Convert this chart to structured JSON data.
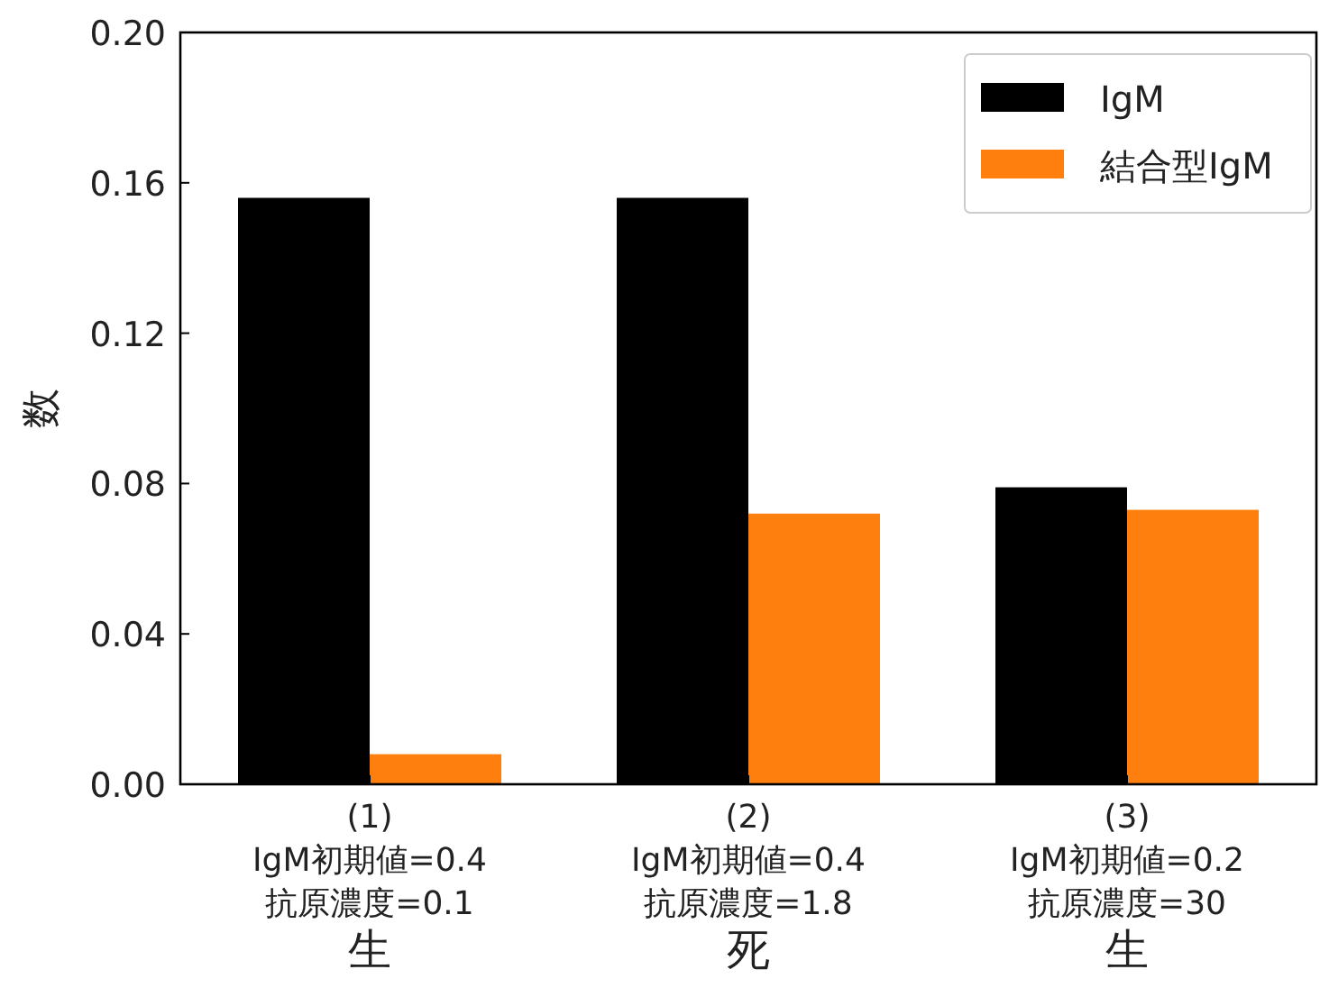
{
  "chart_data": {
    "type": "bar",
    "ylabel": "数",
    "categories": [
      "(1)\nIgM初期値=0.4\n抗原濃度=0.1\n生",
      "(2)\nIgM初期値=0.4\n抗原濃度=1.8\n死",
      "(3)\nIgM初期値=0.2\n抗原濃度=30\n生"
    ],
    "series": [
      {
        "name": "IgM",
        "color": "#000000",
        "values": [
          0.156,
          0.156,
          0.079
        ]
      },
      {
        "name": "結合型IgM",
        "color": "#ff7f0e",
        "values": [
          0.008,
          0.072,
          0.073
        ]
      }
    ],
    "ylim": [
      0,
      0.2
    ],
    "yticks": [
      {
        "value": 0,
        "label": "0.00"
      },
      {
        "value": 0.04,
        "label": "0.04"
      },
      {
        "value": 0.08,
        "label": "0.08"
      },
      {
        "value": 0.12,
        "label": "0.12"
      },
      {
        "value": 0.16,
        "label": "0.16"
      },
      {
        "value": 0.2,
        "label": "0.20"
      }
    ],
    "grid": false,
    "legend": "top right"
  }
}
